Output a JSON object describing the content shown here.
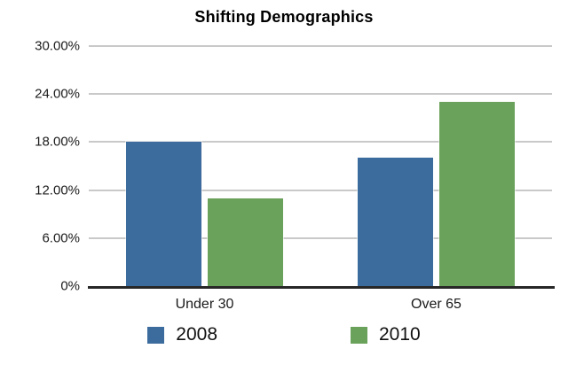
{
  "chart_data": {
    "type": "bar",
    "title": "Shifting Demographics",
    "categories": [
      "Under 30",
      "Over 65"
    ],
    "series": [
      {
        "name": "2008",
        "color": "#3c6b9d",
        "values": [
          18,
          16
        ]
      },
      {
        "name": "2010",
        "color": "#6ba25b",
        "values": [
          11,
          23
        ]
      }
    ],
    "ylim": [
      0,
      30
    ],
    "yticks": [
      {
        "value": 30,
        "label": "30.00%"
      },
      {
        "value": 24,
        "label": "24.00%"
      },
      {
        "value": 18,
        "label": "18.00%"
      },
      {
        "value": 12,
        "label": "12.00%"
      },
      {
        "value": 6,
        "label": "6.00%"
      },
      {
        "value": 0,
        "label": "0%"
      }
    ],
    "grid": true,
    "legend_position": "bottom",
    "colors": {
      "gridline": "#c9c9c9",
      "axis_line": "#272727",
      "title_text": "#000000",
      "label_text": "#1a1a1a",
      "background": "#ffffff"
    }
  }
}
